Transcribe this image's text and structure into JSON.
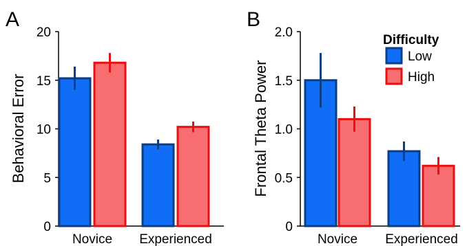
{
  "colors": {
    "low_fill": "#0f6ef5",
    "low_stroke": "#0b3f85",
    "high_fill": "#f76d70",
    "high_stroke": "#e81010",
    "axis": "#000000"
  },
  "legend": {
    "title": "Difficulty",
    "items": [
      {
        "label": "Low",
        "color": "low"
      },
      {
        "label": "High",
        "color": "high"
      }
    ]
  },
  "chart_data": [
    {
      "type": "bar",
      "panel_label": "A",
      "title": "",
      "xlabel": "",
      "ylabel": "Behavioral Error",
      "categories": [
        "Novice",
        "Experienced"
      ],
      "ylim": [
        0,
        20
      ],
      "yticks": [
        0,
        5,
        10,
        15,
        20
      ],
      "ytick_labels": [
        "0",
        "5",
        "10",
        "15",
        "20"
      ],
      "series": [
        {
          "name": "Low",
          "values": [
            15.2,
            8.4
          ],
          "error": [
            1.2,
            0.5
          ]
        },
        {
          "name": "High",
          "values": [
            16.8,
            10.2
          ],
          "error": [
            1.0,
            0.55
          ]
        }
      ],
      "legend": false,
      "grid": false
    },
    {
      "type": "bar",
      "panel_label": "B",
      "title": "",
      "xlabel": "",
      "ylabel": "Frontal Theta Power",
      "categories": [
        "Novice",
        "Experienced"
      ],
      "ylim": [
        0,
        2.0
      ],
      "yticks": [
        0,
        0.5,
        1.0,
        1.5,
        2.0
      ],
      "ytick_labels": [
        "0",
        "0.5",
        "1.0",
        "1.5",
        "2.0"
      ],
      "series": [
        {
          "name": "Low",
          "values": [
            1.5,
            0.77
          ],
          "error": [
            0.28,
            0.1
          ]
        },
        {
          "name": "High",
          "values": [
            1.1,
            0.62
          ],
          "error": [
            0.13,
            0.09
          ]
        }
      ],
      "legend": true,
      "legend_position": "top-right",
      "grid": false
    }
  ]
}
